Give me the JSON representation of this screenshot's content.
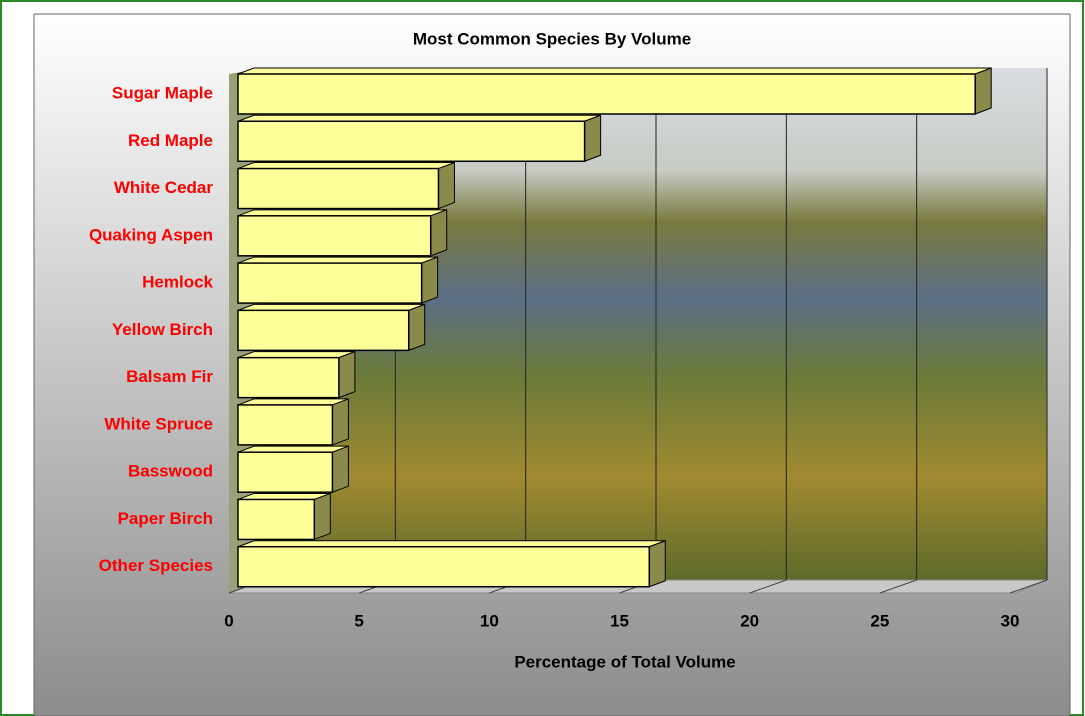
{
  "chart_data": {
    "type": "bar",
    "orientation": "horizontal",
    "three_d": true,
    "title": "Most Common Species By Volume",
    "x_label": "Percentage of Total Volume",
    "categories": [
      "Sugar Maple",
      "Red Maple",
      "White Cedar",
      "Quaking Aspen",
      "Hemlock",
      "Yellow Birch",
      "Balsam Fir",
      "White Spruce",
      "Basswood",
      "Paper Birch",
      "Other Species"
    ],
    "values": [
      28.5,
      13.4,
      7.75,
      7.45,
      7.1,
      6.6,
      3.9,
      3.65,
      3.65,
      2.95,
      15.9
    ],
    "color": "#ffff99",
    "side_color": "#8a8a4a",
    "label_color": "#ff0000",
    "xlim": [
      0,
      30
    ],
    "xticks": [
      0,
      5,
      10,
      15,
      20,
      25,
      30
    ],
    "grid": true
  }
}
